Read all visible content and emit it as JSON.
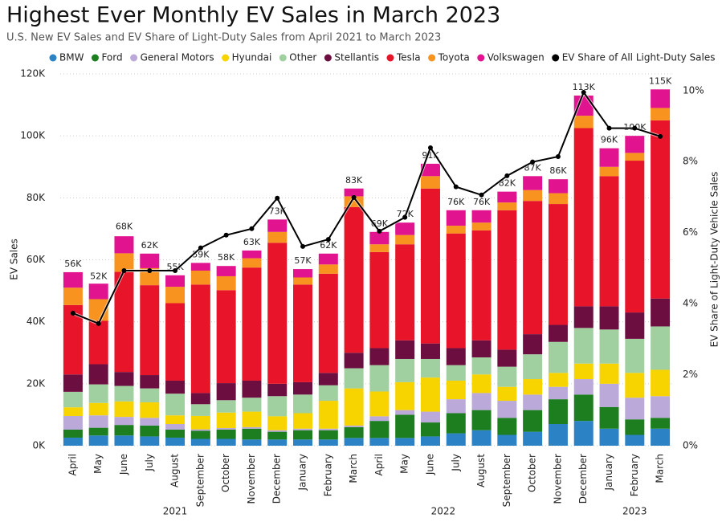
{
  "chart_data": {
    "type": "stacked-bar-line",
    "title": "Highest Ever Monthly EV Sales in March 2023",
    "subtitle": "U.S. New EV Sales and EV Share of Light-Duty Sales from April 2021 to March 2023",
    "y_label": "EV Sales",
    "y2_label": "EV Share of Light-Duty Vehicle Sales",
    "categories": [
      "April",
      "May",
      "June",
      "July",
      "August",
      "September",
      "October",
      "November",
      "December",
      "January",
      "February",
      "March",
      "April",
      "May",
      "June",
      "July",
      "August",
      "September",
      "October",
      "November",
      "December",
      "January",
      "February",
      "March"
    ],
    "year_groups": [
      {
        "label": "2021",
        "count": 9
      },
      {
        "label": "2022",
        "count": 12
      },
      {
        "label": "2023",
        "count": 3
      }
    ],
    "ylim": [
      0,
      120000
    ],
    "yticks": [
      {
        "value": 0,
        "label": "0K"
      },
      {
        "value": 20000,
        "label": "20K"
      },
      {
        "value": 40000,
        "label": "40K"
      },
      {
        "value": 60000,
        "label": "60K"
      },
      {
        "value": 80000,
        "label": "80K"
      },
      {
        "value": 100000,
        "label": "100K"
      },
      {
        "value": 120000,
        "label": "120K"
      }
    ],
    "y2lim": [
      0,
      10.47
    ],
    "y2ticks": [
      {
        "value": 0,
        "label": "0%"
      },
      {
        "value": 2,
        "label": "2%"
      },
      {
        "value": 4,
        "label": "4%"
      },
      {
        "value": 6,
        "label": "6%"
      },
      {
        "value": 8,
        "label": "8%"
      },
      {
        "value": 10,
        "label": "10%"
      }
    ],
    "grid": true,
    "legend": "top",
    "series": [
      {
        "name": "BMW",
        "color": "#2b83c6",
        "values": [
          2600,
          3300,
          3300,
          3000,
          2600,
          2200,
          2200,
          2000,
          2000,
          2000,
          2000,
          2500,
          2500,
          2500,
          3000,
          4000,
          5000,
          3500,
          4500,
          7000,
          8000,
          5500,
          3500,
          5500
        ]
      },
      {
        "name": "Ford",
        "color": "#1c7e1f",
        "values": [
          2600,
          2500,
          3400,
          3500,
          2600,
          2600,
          3000,
          3500,
          2500,
          3000,
          3000,
          3500,
          5500,
          7500,
          4500,
          6500,
          6500,
          5500,
          7000,
          8000,
          8500,
          7000,
          5000,
          3500
        ]
      },
      {
        "name": "General Motors",
        "color": "#bba9da",
        "values": [
          4400,
          4000,
          2600,
          2500,
          1800,
          500,
          500,
          500,
          500,
          500,
          500,
          500,
          1500,
          1500,
          3500,
          4500,
          5500,
          5500,
          5000,
          4000,
          5000,
          7500,
          7000,
          7000
        ]
      },
      {
        "name": "Hyundai",
        "color": "#f7d300",
        "values": [
          2800,
          4000,
          5000,
          5000,
          2800,
          4300,
          5000,
          5000,
          4500,
          5000,
          9000,
          12000,
          8000,
          9000,
          11000,
          6000,
          6000,
          4500,
          5000,
          4500,
          5000,
          6500,
          8000,
          8500
        ]
      },
      {
        "name": "Other",
        "color": "#a1d0a0",
        "values": [
          5000,
          6000,
          5000,
          4500,
          7000,
          3800,
          4000,
          4500,
          6500,
          6000,
          5000,
          6500,
          8500,
          7500,
          6000,
          5000,
          5500,
          6500,
          8000,
          10000,
          11500,
          11000,
          11000,
          14000
        ]
      },
      {
        "name": "Stellantis",
        "color": "#6c0f40",
        "values": [
          5600,
          6500,
          4500,
          4300,
          4200,
          3600,
          5500,
          5500,
          4000,
          4000,
          4000,
          5000,
          5500,
          6000,
          5000,
          5500,
          5500,
          5500,
          6500,
          5500,
          7000,
          7500,
          8500,
          9000
        ]
      },
      {
        "name": "Tesla",
        "color": "#e8142a",
        "values": [
          22400,
          14000,
          32300,
          29000,
          25000,
          35000,
          30000,
          36500,
          45500,
          31500,
          32000,
          47000,
          31000,
          31000,
          50000,
          37000,
          35500,
          45000,
          43000,
          39000,
          57500,
          42000,
          49000,
          57500
        ]
      },
      {
        "name": "Toyota",
        "color": "#f7931e",
        "values": [
          5600,
          7000,
          6000,
          5500,
          5300,
          4500,
          4500,
          3000,
          3500,
          2300,
          3000,
          3500,
          2500,
          3000,
          4000,
          2500,
          2500,
          2500,
          3500,
          3500,
          4000,
          3000,
          2500,
          4000
        ]
      },
      {
        "name": "Volkswagen",
        "color": "#e2138e",
        "values": [
          5000,
          5000,
          5500,
          4700,
          3700,
          2500,
          3300,
          2500,
          4000,
          2700,
          3500,
          2500,
          4000,
          4000,
          4000,
          5000,
          4000,
          3500,
          4500,
          4500,
          6500,
          6000,
          5500,
          6000
        ]
      },
      {
        "name": "EV Share of All Light-Duty Sales",
        "color": "#000000",
        "type": "line",
        "axis": "y2",
        "values": [
          3.73,
          3.44,
          4.93,
          4.93,
          4.93,
          5.57,
          5.93,
          6.11,
          6.97,
          5.61,
          5.81,
          6.99,
          6.04,
          6.43,
          8.39,
          7.29,
          7.06,
          7.6,
          7.99,
          8.14,
          9.95,
          8.94,
          8.94,
          8.71
        ]
      }
    ],
    "totals": {
      "values": [
        56000,
        52000,
        68000,
        62000,
        55000,
        59000,
        58000,
        63000,
        73000,
        57000,
        62000,
        83000,
        69000,
        72000,
        91000,
        76000,
        76000,
        82000,
        87000,
        86000,
        113000,
        96000,
        100000,
        115000
      ],
      "value_labels": [
        "56K",
        "52K",
        "68K",
        "62K",
        "55K",
        "59K",
        "58K",
        "63K",
        "73K",
        "57K",
        "62K",
        "83K",
        "69K",
        "72K",
        "91K",
        "76K",
        "76K",
        "82K",
        "87K",
        "86K",
        "113K",
        "96K",
        "100K",
        "115K"
      ]
    }
  }
}
